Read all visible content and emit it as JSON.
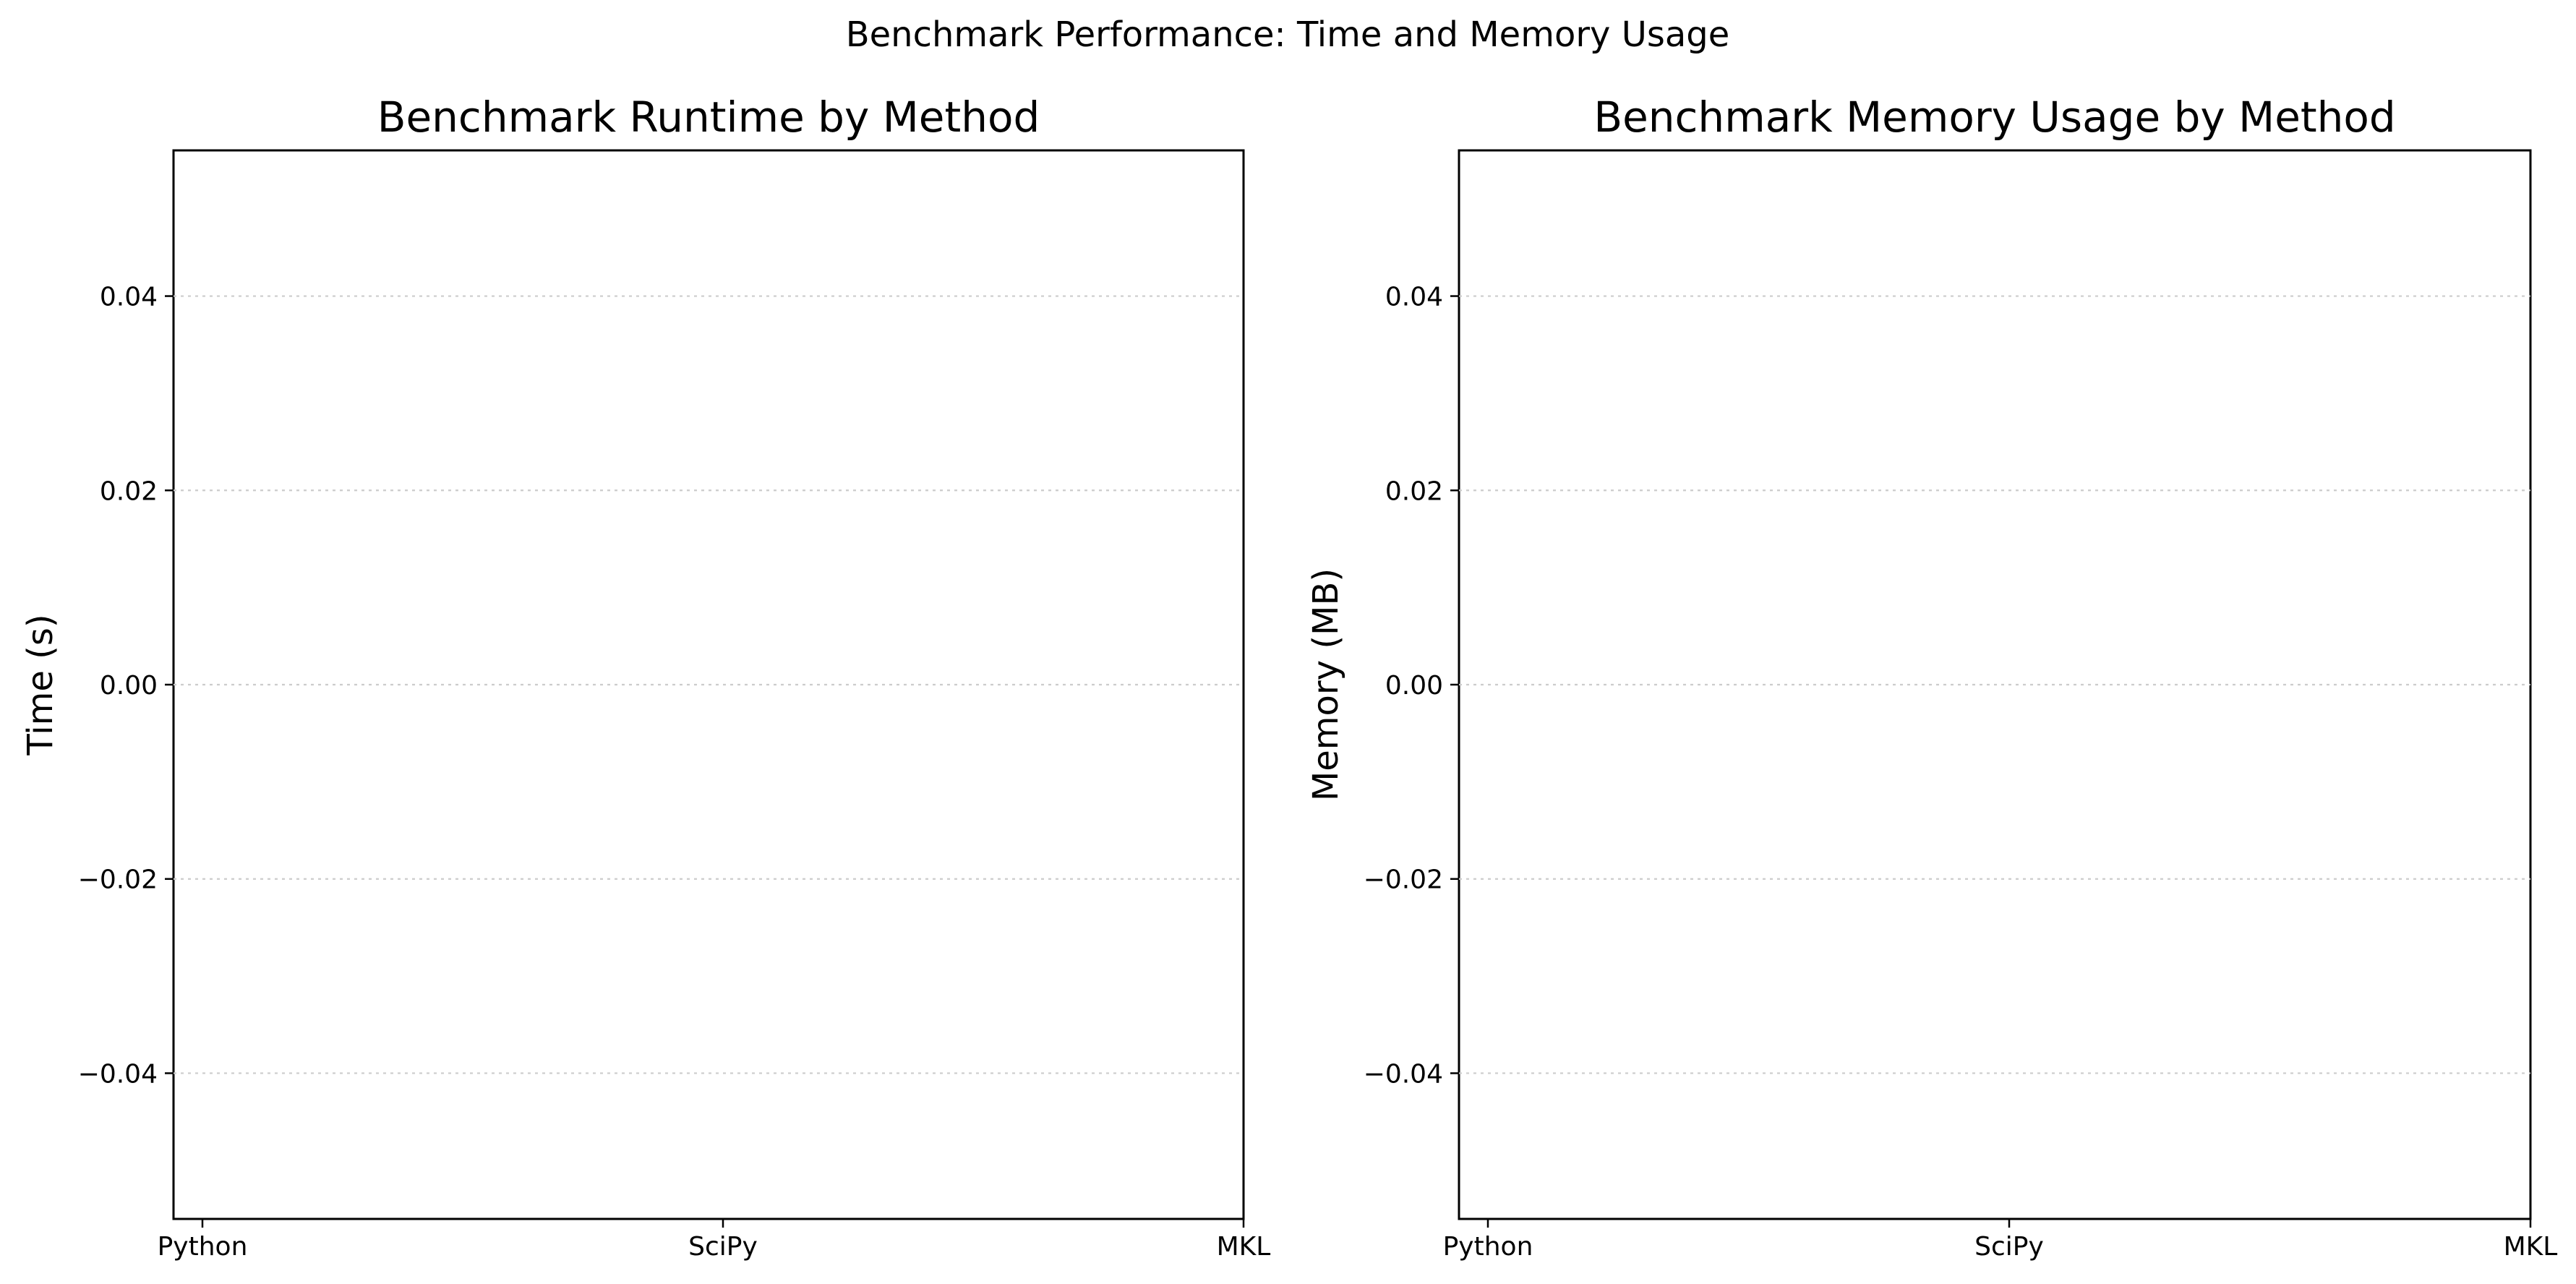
{
  "figure": {
    "suptitle": "Benchmark Performance: Time and Memory Usage"
  },
  "chart_data": [
    {
      "type": "bar",
      "title": "Benchmark Runtime by Method",
      "xlabel": "",
      "ylabel": "Time (s)",
      "categories": [
        "Python",
        "SciPy",
        "MKL"
      ],
      "series": [],
      "ylim": [
        -0.055,
        0.055
      ],
      "yticks": [
        0.04,
        0.02,
        0.0,
        -0.02,
        -0.04
      ],
      "ytick_labels": [
        "0.04",
        "0.02",
        "0.00",
        "−0.02",
        "−0.04"
      ],
      "grid": "y-dotted",
      "legend": "none"
    },
    {
      "type": "bar",
      "title": "Benchmark Memory Usage by Method",
      "xlabel": "",
      "ylabel": "Memory (MB)",
      "categories": [
        "Python",
        "SciPy",
        "MKL"
      ],
      "series": [],
      "ylim": [
        -0.055,
        0.055
      ],
      "yticks": [
        0.04,
        0.02,
        0.0,
        -0.02,
        -0.04
      ],
      "ytick_labels": [
        "0.04",
        "0.02",
        "0.00",
        "−0.02",
        "−0.04"
      ],
      "grid": "y-dotted",
      "legend": "none"
    }
  ]
}
